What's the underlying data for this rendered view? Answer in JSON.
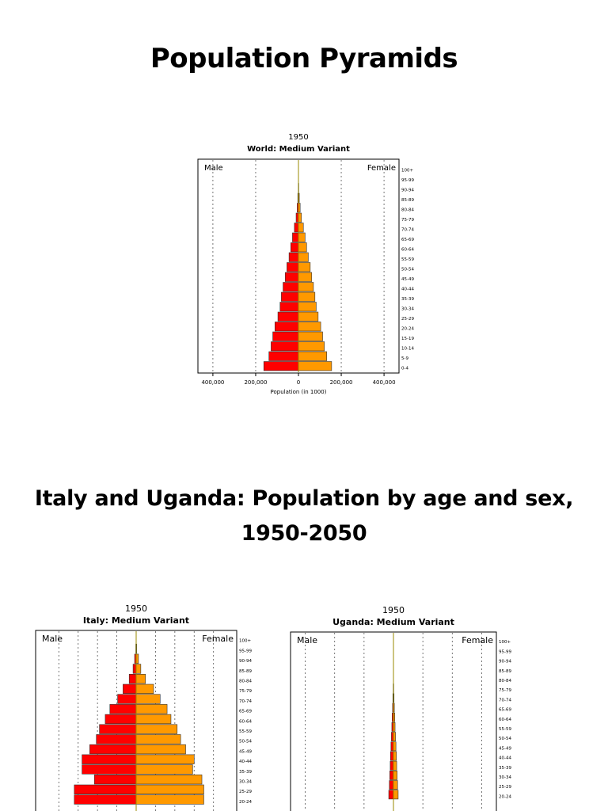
{
  "slide": {
    "title": "Population Pyramids",
    "subtitle_line1": "Italy and Uganda: Population by age and sex,",
    "subtitle_line2": "1950-2050"
  },
  "colors": {
    "male": "#ff0000",
    "female": "#ff9900",
    "axis": "#000000",
    "grid": "#555555",
    "center": "#9a8a00"
  },
  "chart_data": [
    {
      "type": "bar",
      "id": "world",
      "year": "1950",
      "title": "World: Medium Variant",
      "left_label": "Male",
      "right_label": "Female",
      "xlabel": "Population (in 1000)",
      "x_ticks": [
        "400,000",
        "200,000",
        "0",
        "200,000",
        "400,000"
      ],
      "x_tick_values": [
        -400000,
        -200000,
        0,
        200000,
        400000
      ],
      "xlim": [
        -470000,
        470000
      ],
      "categories": [
        "100+",
        "95-99",
        "90-94",
        "85-89",
        "80-84",
        "75-79",
        "70-74",
        "65-69",
        "60-64",
        "55-59",
        "50-54",
        "45-49",
        "40-44",
        "35-39",
        "30-34",
        "25-29",
        "20-24",
        "15-19",
        "10-14",
        "5-9",
        "0-4"
      ],
      "series": [
        {
          "name": "Male",
          "values": [
            0,
            300,
            1000,
            3000,
            6000,
            11000,
            19000,
            28000,
            36000,
            44000,
            54000,
            62000,
            72000,
            80000,
            86000,
            96000,
            110000,
            120000,
            128000,
            138000,
            162000
          ]
        },
        {
          "name": "Female",
          "values": [
            0,
            500,
            1500,
            4000,
            8000,
            14000,
            23000,
            31000,
            38000,
            46000,
            55000,
            62000,
            70000,
            77000,
            83000,
            92000,
            104000,
            113000,
            121000,
            132000,
            155000
          ]
        }
      ]
    },
    {
      "type": "bar",
      "id": "italy",
      "year": "1950",
      "title": "Italy: Medium Variant",
      "left_label": "Male",
      "right_label": "Female",
      "xlabel": "",
      "x_ticks": [],
      "xlim": [
        -2600,
        2600
      ],
      "categories": [
        "100+",
        "95-99",
        "90-94",
        "85-89",
        "80-84",
        "75-79",
        "70-74",
        "65-69",
        "60-64",
        "55-59",
        "50-54",
        "45-49",
        "40-44",
        "35-39",
        "30-34",
        "25-29",
        "20-24"
      ],
      "series": [
        {
          "name": "Male",
          "values": [
            0,
            10,
            40,
            80,
            180,
            340,
            480,
            680,
            800,
            950,
            1030,
            1200,
            1400,
            1400,
            1080,
            1600,
            1600
          ]
        },
        {
          "name": "Female",
          "values": [
            0,
            15,
            60,
            120,
            240,
            450,
            620,
            800,
            900,
            1060,
            1150,
            1280,
            1500,
            1460,
            1700,
            1750,
            1750
          ]
        }
      ]
    },
    {
      "type": "bar",
      "id": "uganda",
      "year": "1950",
      "title": "Uganda: Medium Variant",
      "left_label": "Male",
      "right_label": "Female",
      "xlabel": "",
      "x_ticks": [],
      "xlim": [
        -3500,
        3500
      ],
      "categories": [
        "100+",
        "95-99",
        "90-94",
        "85-89",
        "80-84",
        "75-79",
        "70-74",
        "65-69",
        "60-64",
        "55-59",
        "50-54",
        "45-49",
        "40-44",
        "35-39",
        "30-34",
        "25-29",
        "20-24"
      ],
      "series": [
        {
          "name": "Male",
          "values": [
            0,
            0,
            0,
            0,
            5,
            10,
            20,
            30,
            45,
            55,
            70,
            85,
            100,
            110,
            125,
            140,
            160
          ]
        },
        {
          "name": "Female",
          "values": [
            0,
            0,
            0,
            0,
            5,
            10,
            20,
            30,
            45,
            55,
            70,
            85,
            100,
            110,
            125,
            140,
            160
          ]
        }
      ]
    }
  ]
}
